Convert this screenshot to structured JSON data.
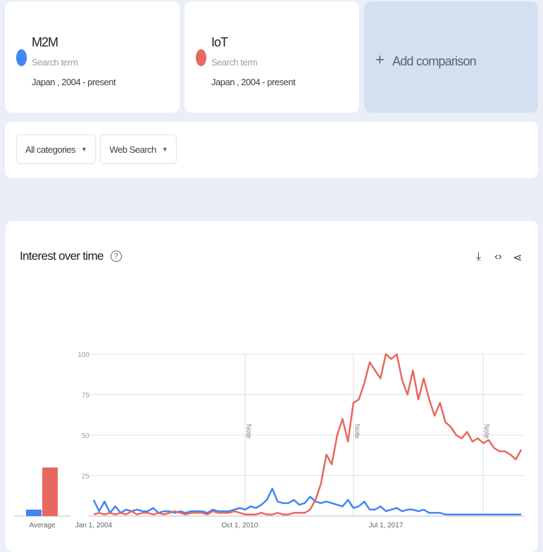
{
  "terms": [
    {
      "name": "M2M",
      "type": "Search term",
      "scope": "Japan , 2004 - present",
      "color": "#4285f4"
    },
    {
      "name": "IoT",
      "type": "Search term",
      "scope": "Japan , 2004 - present",
      "color": "#e8675f"
    }
  ],
  "add_comparison": {
    "icon": "plus-icon",
    "label": "Add comparison"
  },
  "filters": {
    "category": "All categories",
    "search_type": "Web Search"
  },
  "panel": {
    "title": "Interest over time",
    "help_icon": "?",
    "icons": [
      "download-icon",
      "embed-icon",
      "share-icon"
    ]
  },
  "chart_data": {
    "type": "line",
    "ylim": [
      0,
      100
    ],
    "yticks": [
      "100",
      "75",
      "50",
      "25"
    ],
    "xtick_labels": [
      "Jan 1, 2004",
      "Oct 1, 2010",
      "Jul 1, 2017"
    ],
    "xlim": [
      "2004-01",
      "2023-10"
    ],
    "grid": true,
    "note_label": "Note",
    "notes": [
      "2011-01",
      "2016-01",
      "2022-01"
    ],
    "average_label": "Average",
    "averages": [
      {
        "term": "M2M",
        "value": 4
      },
      {
        "term": "IoT",
        "value": 30
      }
    ],
    "x_start": "2004-01",
    "x_step": "quarter",
    "series": [
      {
        "name": "M2M",
        "color": "#4285f4",
        "values": [
          10,
          3,
          9,
          2,
          6,
          2,
          4,
          3,
          4,
          3,
          3,
          5,
          2,
          3,
          3,
          2,
          3,
          2,
          3,
          3,
          3,
          2,
          4,
          3,
          3,
          3,
          4,
          5,
          4,
          6,
          5,
          7,
          10,
          17,
          9,
          8,
          8,
          10,
          7,
          8,
          12,
          9,
          8,
          9,
          8,
          7,
          6,
          10,
          5,
          6,
          9,
          4,
          4,
          6,
          3,
          4,
          5,
          3,
          4,
          4,
          3,
          4,
          2,
          2,
          2,
          1,
          1,
          1,
          1,
          1,
          1,
          1,
          1,
          1,
          1,
          1,
          1,
          1,
          1,
          1
        ]
      },
      {
        "name": "IoT",
        "color": "#e8675f",
        "values": [
          1,
          2,
          1,
          2,
          1,
          2,
          1,
          3,
          1,
          2,
          2,
          1,
          2,
          1,
          2,
          3,
          2,
          1,
          2,
          2,
          2,
          1,
          3,
          2,
          2,
          2,
          3,
          2,
          1,
          1,
          1,
          2,
          1,
          1,
          2,
          1,
          1,
          2,
          2,
          2,
          4,
          10,
          20,
          38,
          32,
          50,
          60,
          46,
          70,
          72,
          82,
          95,
          90,
          85,
          100,
          97,
          100,
          84,
          75,
          90,
          72,
          85,
          72,
          62,
          70,
          58,
          55,
          50,
          48,
          52,
          46,
          48,
          45,
          47,
          42,
          40,
          40,
          38,
          35,
          41
        ]
      }
    ]
  }
}
